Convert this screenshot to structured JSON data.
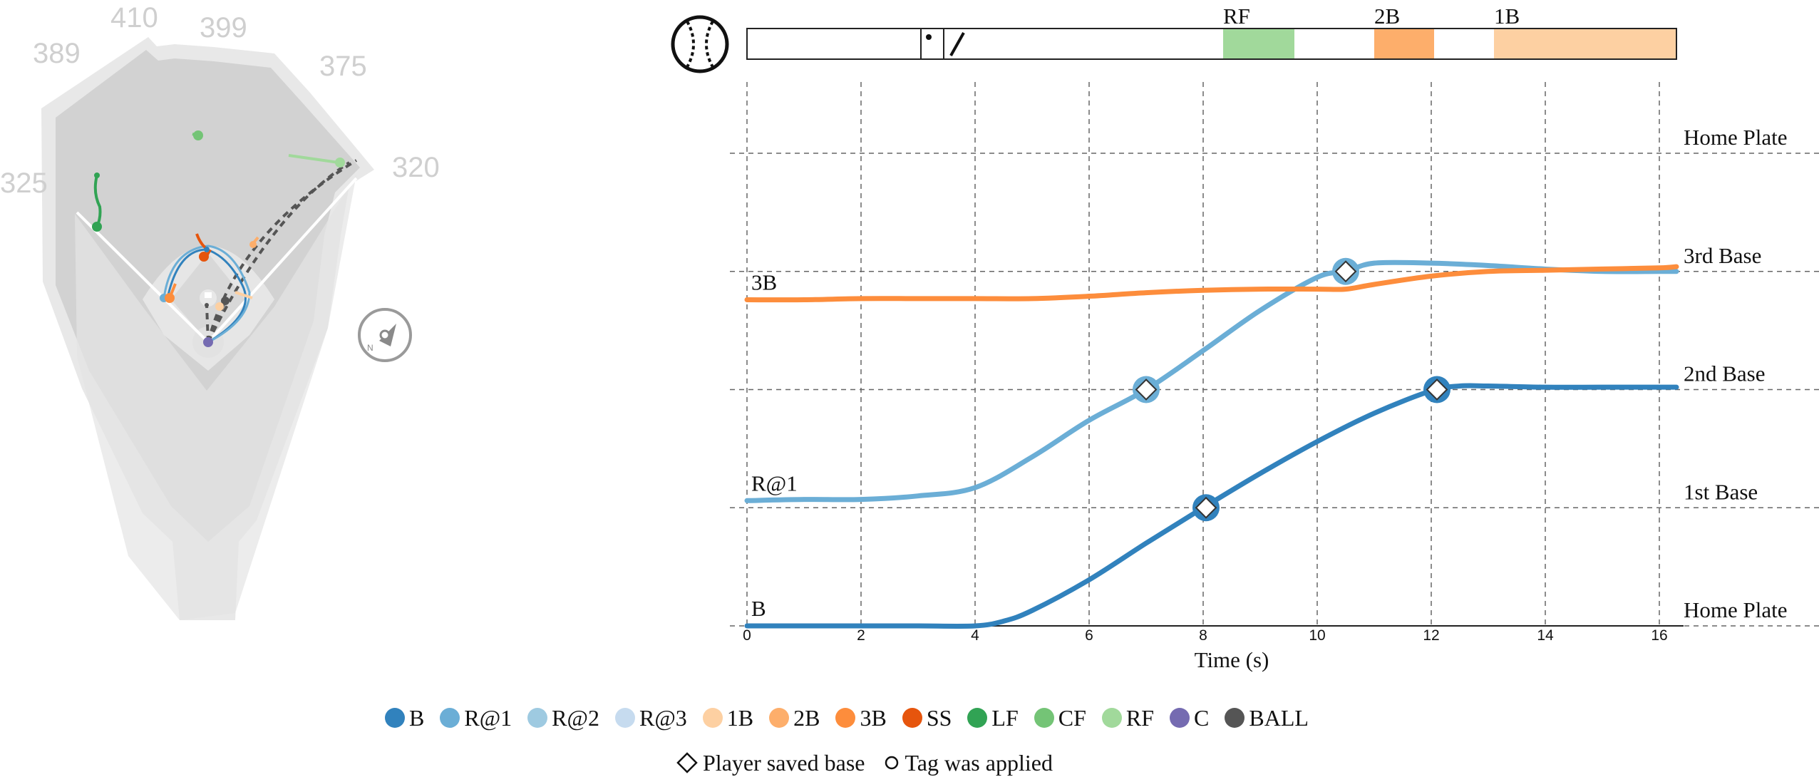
{
  "field": {
    "distances": [
      "410",
      "399",
      "389",
      "375",
      "325",
      "320"
    ],
    "compass_letter": "N"
  },
  "timeline": {
    "events": [
      "RF",
      "2B",
      "1B"
    ],
    "event_colors": [
      "#a1d99b",
      "#fdae6b",
      "#fdd0a2"
    ]
  },
  "legend": {
    "items": [
      {
        "label": "B",
        "color": "#3182bd"
      },
      {
        "label": "R@1",
        "color": "#6baed6"
      },
      {
        "label": "R@2",
        "color": "#9ecae1"
      },
      {
        "label": "R@3",
        "color": "#c6dbef"
      },
      {
        "label": "1B",
        "color": "#fdd0a2"
      },
      {
        "label": "2B",
        "color": "#fdae6b"
      },
      {
        "label": "3B",
        "color": "#fd8d3c"
      },
      {
        "label": "SS",
        "color": "#e6550d"
      },
      {
        "label": "LF",
        "color": "#31a354"
      },
      {
        "label": "CF",
        "color": "#74c476"
      },
      {
        "label": "RF",
        "color": "#a1d99b"
      },
      {
        "label": "C",
        "color": "#756bb1"
      },
      {
        "label": "BALL",
        "color": "#555555"
      }
    ]
  },
  "footnote": {
    "saved": "Player saved base",
    "tag": "Tag was applied"
  },
  "chart_data": {
    "type": "line",
    "xlabel": "Time (s)",
    "x_ticks": [
      0,
      2,
      4,
      6,
      8,
      10,
      12,
      14,
      16
    ],
    "xlim": [
      0,
      16.3
    ],
    "y_labels": [
      "Home Plate",
      "1st Base",
      "2nd Base",
      "3rd Base",
      "Home Plate"
    ],
    "ylim": [
      0,
      4
    ],
    "series": [
      {
        "name": "B",
        "color": "#3182bd",
        "x": [
          0,
          1,
          2,
          3,
          4,
          4.5,
          5,
          6,
          7,
          8,
          9,
          10,
          11,
          12,
          12.5,
          13,
          14,
          15,
          16,
          16.3
        ],
        "y": [
          0,
          0,
          0,
          0,
          0,
          0.04,
          0.13,
          0.39,
          0.7,
          1.0,
          1.29,
          1.56,
          1.8,
          1.99,
          2.03,
          2.03,
          2.02,
          2.02,
          2.02,
          2.02
        ],
        "saved_bases": [
          [
            8.05,
            1.0
          ],
          [
            12.1,
            2.0
          ]
        ]
      },
      {
        "name": "R@1",
        "color": "#6baed6",
        "x": [
          0,
          1,
          2,
          3,
          4,
          5,
          6,
          7,
          8,
          9,
          10,
          10.5,
          11,
          12,
          13,
          14,
          15,
          16,
          16.3
        ],
        "y": [
          1.06,
          1.07,
          1.07,
          1.1,
          1.17,
          1.43,
          1.74,
          2.0,
          2.33,
          2.67,
          2.95,
          3.0,
          3.07,
          3.07,
          3.05,
          3.02,
          3.0,
          3.0,
          3.0
        ],
        "saved_bases": [
          [
            7.0,
            2.0
          ],
          [
            10.5,
            3.0
          ]
        ]
      },
      {
        "name": "3B",
        "color": "#fd8d3c",
        "x": [
          0,
          1,
          2,
          3,
          4,
          5,
          6,
          7,
          8,
          9,
          10,
          10.5,
          11,
          12,
          13,
          14,
          15,
          16,
          16.3
        ],
        "y": [
          2.76,
          2.76,
          2.77,
          2.77,
          2.77,
          2.77,
          2.79,
          2.82,
          2.84,
          2.85,
          2.85,
          2.85,
          2.89,
          2.96,
          3.0,
          3.01,
          3.02,
          3.03,
          3.04
        ],
        "saved_bases": []
      }
    ],
    "timeline_marks": {
      "pitch_time": 3.05,
      "swing_time": 3.45
    },
    "timeline_events": [
      {
        "label": "RF",
        "start": 8.35,
        "end": 9.6
      },
      {
        "label": "2B",
        "start": 11.0,
        "end": 12.05
      },
      {
        "label": "1B",
        "start": 13.1,
        "end": 16.3
      }
    ],
    "grid": true
  }
}
